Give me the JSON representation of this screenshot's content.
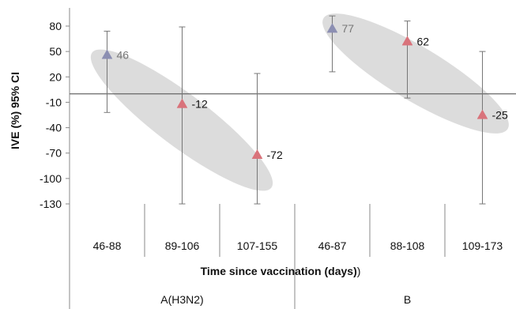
{
  "chart_data": {
    "type": "scatter",
    "title": "",
    "ylabel": "IVE (%) 95% CI",
    "xlabel": "Time since vaccination (days)",
    "xlabel_suffix": ")",
    "ylim": [
      -130,
      80
    ],
    "yticks": [
      80,
      50,
      20,
      -10,
      -40,
      -70,
      -100,
      -130
    ],
    "groups": [
      {
        "name": "A(H3N2)",
        "categories": [
          "46-88",
          "89-106",
          "107-155"
        ]
      },
      {
        "name": "B",
        "categories": [
          "46-87",
          "88-108",
          "109-173"
        ]
      }
    ],
    "categories": [
      "46-88",
      "89-106",
      "107-155",
      "46-87",
      "88-108",
      "109-173"
    ],
    "points": [
      {
        "category": "46-88",
        "value": 46,
        "label": "46",
        "ci_low": -22,
        "ci_high": 74,
        "color": "#8C8FB2"
      },
      {
        "category": "89-106",
        "value": -12,
        "label": "-12",
        "ci_low": -130,
        "ci_high": 79,
        "color": "#D9737B"
      },
      {
        "category": "107-155",
        "value": -72,
        "label": "-72",
        "ci_low": -130,
        "ci_high": 24,
        "color": "#D9737B"
      },
      {
        "category": "46-87",
        "value": 77,
        "label": "77",
        "ci_low": 26,
        "ci_high": 92,
        "color": "#8C8FB2"
      },
      {
        "category": "88-108",
        "value": 62,
        "label": "62",
        "ci_low": -5,
        "ci_high": 86,
        "color": "#D9737B"
      },
      {
        "category": "109-173",
        "value": -25,
        "label": "-25",
        "ci_low": -130,
        "ci_high": 50,
        "color": "#D9737B"
      }
    ],
    "label_colors": [
      "#777777",
      "#111111",
      "#111111",
      "#777777",
      "#111111",
      "#111111"
    ],
    "highlight_color": "#D9D9D9",
    "reference_line": 0
  }
}
